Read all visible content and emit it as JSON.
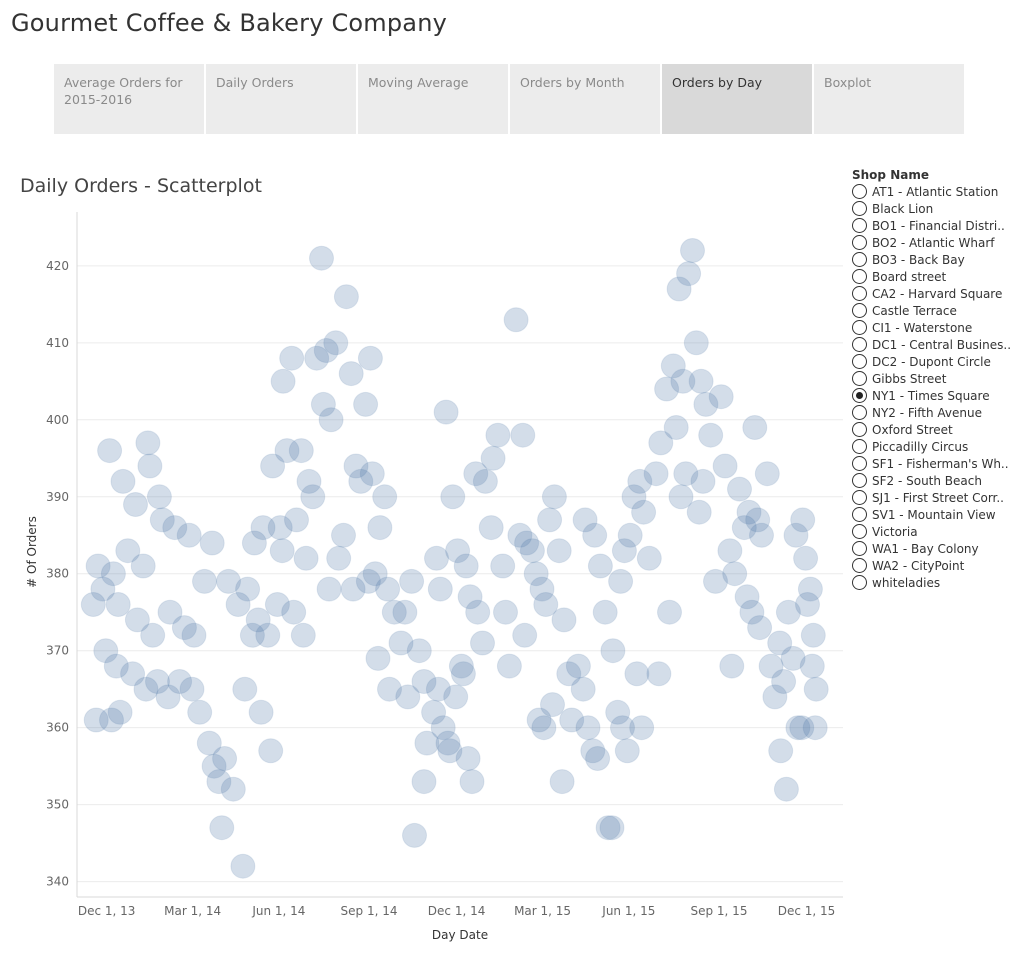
{
  "header": {
    "title": "Gourmet Coffee & Bakery Company"
  },
  "tabs": [
    {
      "label": "Average Orders for 2015-2016",
      "active": false
    },
    {
      "label": "Daily Orders",
      "active": false
    },
    {
      "label": "Moving Average",
      "active": false
    },
    {
      "label": "Orders by Month",
      "active": false
    },
    {
      "label": "Orders by Day",
      "active": true
    },
    {
      "label": "Boxplot",
      "active": false
    }
  ],
  "filter": {
    "title": "Shop Name",
    "selected": "NY1 - Times Square",
    "options": [
      "AT1 - Atlantic Station",
      "Black Lion",
      "BO1 - Financial Distri..",
      "BO2 - Atlantic Wharf",
      "BO3 - Back Bay",
      "Board street",
      "CA2 - Harvard Square",
      "Castle Terrace",
      "CI1 - Waterstone",
      "DC1 - Central Busines..",
      "DC2 - Dupont Circle",
      "Gibbs Street",
      "NY1 - Times Square",
      "NY2 - Fifth Avenue",
      "Oxford Street",
      "Piccadilly Circus",
      "SF1 - Fisherman's Wh..",
      "SF2 - South Beach",
      "SJ1 - First Street Corr..",
      "SV1 - Mountain View",
      "Victoria",
      "WA1 - Bay Colony",
      "WA2 - CityPoint",
      "whiteladies"
    ]
  },
  "colors": {
    "mark": "#a9bcd3",
    "mark_overlap": "#4e79a7",
    "grid": "#ececec",
    "text": "#666666"
  },
  "chart_data": {
    "type": "scatter",
    "title": "Daily Orders - Scatterplot",
    "xlabel": "Day Date",
    "ylabel": "# Of Orders",
    "ylim": [
      338,
      427
    ],
    "xlim": [
      "2013-11-28",
      "2016-02-05"
    ],
    "yticks": [
      340,
      350,
      360,
      370,
      380,
      390,
      400,
      410,
      420
    ],
    "xticks": [
      {
        "date": "2013-12-01",
        "label": "Dec 1, 13"
      },
      {
        "date": "2014-03-01",
        "label": "Mar 1, 14"
      },
      {
        "date": "2014-06-01",
        "label": "Jun 1, 14"
      },
      {
        "date": "2014-09-01",
        "label": "Sep 1, 14"
      },
      {
        "date": "2014-12-01",
        "label": "Dec 1, 14"
      },
      {
        "date": "2015-03-01",
        "label": "Mar 1, 15"
      },
      {
        "date": "2015-06-01",
        "label": "Jun 1, 15"
      },
      {
        "date": "2015-09-01",
        "label": "Sep 1, 15"
      },
      {
        "date": "2015-12-01",
        "label": "Dec 1, 15"
      }
    ],
    "points": [
      [
        "2014-01-01",
        396
      ],
      [
        "2014-01-15",
        392
      ],
      [
        "2014-01-28",
        389
      ],
      [
        "2014-02-10",
        397
      ],
      [
        "2014-02-12",
        394
      ],
      [
        "2014-02-22",
        390
      ],
      [
        "2013-12-20",
        381
      ],
      [
        "2013-12-25",
        378
      ],
      [
        "2014-01-05",
        380
      ],
      [
        "2014-01-20",
        383
      ],
      [
        "2014-02-05",
        381
      ],
      [
        "2014-02-25",
        387
      ],
      [
        "2014-03-10",
        386
      ],
      [
        "2014-03-25",
        385
      ],
      [
        "2014-01-10",
        376
      ],
      [
        "2014-01-30",
        374
      ],
      [
        "2014-02-15",
        372
      ],
      [
        "2014-03-05",
        375
      ],
      [
        "2014-03-20",
        373
      ],
      [
        "2014-03-30",
        372
      ],
      [
        "2013-12-15",
        376
      ],
      [
        "2013-12-28",
        370
      ],
      [
        "2014-01-08",
        368
      ],
      [
        "2014-01-25",
        367
      ],
      [
        "2014-02-08",
        365
      ],
      [
        "2014-02-20",
        366
      ],
      [
        "2014-03-03",
        364
      ],
      [
        "2014-03-15",
        366
      ],
      [
        "2014-03-28",
        365
      ],
      [
        "2013-12-18",
        361
      ],
      [
        "2014-01-03",
        361
      ],
      [
        "2014-01-12",
        362
      ],
      [
        "2014-04-05",
        362
      ],
      [
        "2014-04-15",
        358
      ],
      [
        "2014-04-20",
        355
      ],
      [
        "2014-04-25",
        353
      ],
      [
        "2014-05-01",
        356
      ],
      [
        "2014-05-10",
        352
      ],
      [
        "2014-04-28",
        347
      ],
      [
        "2014-05-20",
        342
      ],
      [
        "2014-04-10",
        379
      ],
      [
        "2014-04-18",
        384
      ],
      [
        "2014-05-05",
        379
      ],
      [
        "2014-05-15",
        376
      ],
      [
        "2014-05-25",
        378
      ],
      [
        "2014-06-01",
        384
      ],
      [
        "2014-06-10",
        386
      ],
      [
        "2014-06-20",
        394
      ],
      [
        "2014-06-28",
        386
      ],
      [
        "2014-05-30",
        372
      ],
      [
        "2014-06-05",
        374
      ],
      [
        "2014-06-15",
        372
      ],
      [
        "2014-06-25",
        376
      ],
      [
        "2014-05-22",
        365
      ],
      [
        "2014-06-08",
        362
      ],
      [
        "2014-06-18",
        357
      ],
      [
        "2014-07-01",
        405
      ],
      [
        "2014-07-10",
        408
      ],
      [
        "2014-07-05",
        396
      ],
      [
        "2014-07-20",
        396
      ],
      [
        "2014-07-28",
        392
      ],
      [
        "2014-08-05",
        408
      ],
      [
        "2014-08-12",
        402
      ],
      [
        "2014-08-15",
        409
      ],
      [
        "2014-08-20",
        400
      ],
      [
        "2014-08-25",
        410
      ],
      [
        "2014-08-10",
        421
      ],
      [
        "2014-09-05",
        416
      ],
      [
        "2014-09-10",
        406
      ],
      [
        "2014-09-15",
        394
      ],
      [
        "2014-09-20",
        392
      ],
      [
        "2014-08-01",
        390
      ],
      [
        "2014-07-15",
        387
      ],
      [
        "2014-07-25",
        382
      ],
      [
        "2014-06-30",
        383
      ],
      [
        "2014-07-12",
        375
      ],
      [
        "2014-07-22",
        372
      ],
      [
        "2014-08-18",
        378
      ],
      [
        "2014-08-28",
        382
      ],
      [
        "2014-09-02",
        385
      ],
      [
        "2014-09-25",
        402
      ],
      [
        "2014-09-30",
        408
      ],
      [
        "2014-09-12",
        378
      ],
      [
        "2014-09-28",
        379
      ],
      [
        "2014-10-05",
        380
      ],
      [
        "2014-10-10",
        386
      ],
      [
        "2014-10-18",
        378
      ],
      [
        "2014-10-25",
        375
      ],
      [
        "2014-10-02",
        393
      ],
      [
        "2014-10-15",
        390
      ],
      [
        "2014-11-01",
        371
      ],
      [
        "2014-11-05",
        375
      ],
      [
        "2014-11-12",
        379
      ],
      [
        "2014-11-20",
        370
      ],
      [
        "2014-11-25",
        366
      ],
      [
        "2014-10-08",
        369
      ],
      [
        "2014-10-20",
        365
      ],
      [
        "2014-11-08",
        364
      ],
      [
        "2014-11-28",
        358
      ],
      [
        "2014-11-15",
        346
      ],
      [
        "2014-11-25",
        353
      ],
      [
        "2014-12-05",
        362
      ],
      [
        "2014-12-10",
        365
      ],
      [
        "2014-12-15",
        360
      ],
      [
        "2014-12-20",
        358
      ],
      [
        "2014-12-22",
        357
      ],
      [
        "2014-12-28",
        364
      ],
      [
        "2015-01-03",
        368
      ],
      [
        "2015-01-05",
        367
      ],
      [
        "2015-01-10",
        356
      ],
      [
        "2015-01-14",
        353
      ],
      [
        "2014-12-18",
        401
      ],
      [
        "2014-12-25",
        390
      ],
      [
        "2014-12-08",
        382
      ],
      [
        "2014-12-12",
        378
      ],
      [
        "2014-12-30",
        383
      ],
      [
        "2015-01-08",
        381
      ],
      [
        "2015-01-12",
        377
      ],
      [
        "2015-01-20",
        375
      ],
      [
        "2015-01-25",
        371
      ],
      [
        "2015-01-18",
        393
      ],
      [
        "2015-01-28",
        392
      ],
      [
        "2015-02-05",
        395
      ],
      [
        "2015-02-10",
        398
      ],
      [
        "2015-02-03",
        386
      ],
      [
        "2015-02-15",
        381
      ],
      [
        "2015-02-22",
        368
      ],
      [
        "2015-03-01",
        413
      ],
      [
        "2015-03-08",
        398
      ],
      [
        "2015-03-05",
        385
      ],
      [
        "2015-03-12",
        384
      ],
      [
        "2015-03-18",
        383
      ],
      [
        "2015-03-22",
        380
      ],
      [
        "2015-03-28",
        378
      ],
      [
        "2015-03-10",
        372
      ],
      [
        "2015-02-18",
        375
      ],
      [
        "2015-04-01",
        376
      ],
      [
        "2015-04-05",
        387
      ],
      [
        "2015-04-10",
        390
      ],
      [
        "2015-04-15",
        383
      ],
      [
        "2015-04-20",
        374
      ],
      [
        "2015-04-25",
        367
      ],
      [
        "2015-03-25",
        361
      ],
      [
        "2015-03-30",
        360
      ],
      [
        "2015-04-08",
        363
      ],
      [
        "2015-04-18",
        353
      ],
      [
        "2015-04-28",
        361
      ],
      [
        "2015-05-05",
        368
      ],
      [
        "2015-05-10",
        365
      ],
      [
        "2015-05-15",
        360
      ],
      [
        "2015-05-20",
        357
      ],
      [
        "2015-05-25",
        356
      ],
      [
        "2015-05-12",
        387
      ],
      [
        "2015-05-22",
        385
      ],
      [
        "2015-05-28",
        381
      ],
      [
        "2015-06-02",
        375
      ],
      [
        "2015-06-05",
        347
      ],
      [
        "2015-06-09",
        347
      ],
      [
        "2015-06-10",
        370
      ],
      [
        "2015-06-15",
        362
      ],
      [
        "2015-06-20",
        360
      ],
      [
        "2015-06-25",
        357
      ],
      [
        "2015-06-18",
        379
      ],
      [
        "2015-06-22",
        383
      ],
      [
        "2015-06-28",
        385
      ],
      [
        "2015-07-02",
        390
      ],
      [
        "2015-07-08",
        392
      ],
      [
        "2015-07-12",
        388
      ],
      [
        "2015-07-18",
        382
      ],
      [
        "2015-07-05",
        367
      ],
      [
        "2015-07-10",
        360
      ],
      [
        "2015-07-25",
        393
      ],
      [
        "2015-07-30",
        397
      ],
      [
        "2015-08-05",
        404
      ],
      [
        "2015-08-12",
        407
      ],
      [
        "2015-08-15",
        399
      ],
      [
        "2015-08-18",
        417
      ],
      [
        "2015-08-28",
        419
      ],
      [
        "2015-09-01",
        422
      ],
      [
        "2015-08-22",
        405
      ],
      [
        "2015-09-05",
        410
      ],
      [
        "2015-09-10",
        405
      ],
      [
        "2015-09-15",
        402
      ],
      [
        "2015-09-20",
        398
      ],
      [
        "2015-07-28",
        367
      ],
      [
        "2015-08-08",
        375
      ],
      [
        "2015-08-20",
        390
      ],
      [
        "2015-08-25",
        393
      ],
      [
        "2015-09-08",
        388
      ],
      [
        "2015-09-12",
        392
      ],
      [
        "2015-09-25",
        379
      ],
      [
        "2015-10-01",
        403
      ],
      [
        "2015-10-05",
        394
      ],
      [
        "2015-10-10",
        383
      ],
      [
        "2015-10-15",
        380
      ],
      [
        "2015-10-20",
        391
      ],
      [
        "2015-10-25",
        386
      ],
      [
        "2015-10-30",
        388
      ],
      [
        "2015-11-05",
        399
      ],
      [
        "2015-11-08",
        387
      ],
      [
        "2015-10-12",
        368
      ],
      [
        "2015-10-28",
        377
      ],
      [
        "2015-11-12",
        385
      ],
      [
        "2015-11-18",
        393
      ],
      [
        "2015-11-02",
        375
      ],
      [
        "2015-11-10",
        373
      ],
      [
        "2015-11-22",
        368
      ],
      [
        "2015-11-26",
        364
      ],
      [
        "2015-12-01",
        371
      ],
      [
        "2015-12-05",
        366
      ],
      [
        "2015-12-10",
        375
      ],
      [
        "2015-12-15",
        369
      ],
      [
        "2015-12-20",
        360
      ],
      [
        "2015-12-02",
        357
      ],
      [
        "2015-12-08",
        352
      ],
      [
        "2015-12-25",
        387
      ],
      [
        "2015-12-28",
        382
      ],
      [
        "2016-01-02",
        378
      ],
      [
        "2016-01-05",
        372
      ],
      [
        "2016-01-08",
        365
      ],
      [
        "2015-12-18",
        385
      ],
      [
        "2015-12-30",
        376
      ],
      [
        "2016-01-04",
        368
      ],
      [
        "2015-12-24",
        360
      ],
      [
        "2016-01-07",
        360
      ]
    ]
  }
}
